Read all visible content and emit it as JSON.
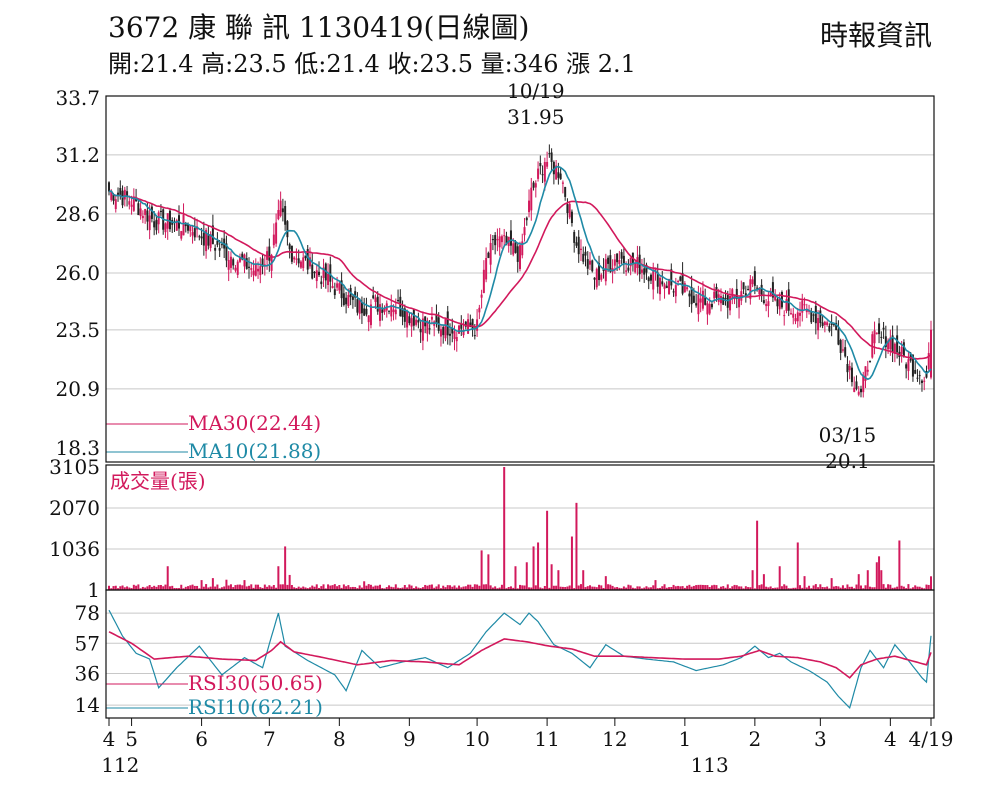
{
  "header": {
    "title": "3672 康 聯 訊 1130419(日線圖)",
    "source": "時報資訊",
    "summary": "開:21.4 高:23.5 低:21.4 收:23.5 量:346 漲 2.1"
  },
  "colors": {
    "up": "#d2195c",
    "down": "#222222",
    "ma30": "#d2195c",
    "ma10": "#1f8aa6",
    "rsi30": "#d2195c",
    "rsi10": "#1f8aa6",
    "volume": "#d2195c",
    "grid": "#c8c8c8"
  },
  "chart_data": [
    {
      "type": "candlestick",
      "name": "price",
      "ylim": [
        18.3,
        33.7
      ],
      "y_ticks": [
        "33.7",
        "31.2",
        "28.6",
        "26.0",
        "23.5",
        "20.9",
        "18.3"
      ],
      "x_ticks": [
        {
          "label": "4",
          "day": 0
        },
        {
          "label": "5",
          "day": 10
        },
        {
          "label": "6",
          "day": 41
        },
        {
          "label": "7",
          "day": 71
        },
        {
          "label": "8",
          "day": 102
        },
        {
          "label": "9",
          "day": 133
        },
        {
          "label": "10",
          "day": 163
        },
        {
          "label": "11",
          "day": 194
        },
        {
          "label": "12",
          "day": 224
        },
        {
          "label": "1",
          "day": 255
        },
        {
          "label": "2",
          "day": 286
        },
        {
          "label": "3",
          "day": 315
        },
        {
          "label": "4",
          "day": 346
        },
        {
          "label": "4/19",
          "day": 364
        }
      ],
      "year_labels": [
        {
          "label": "112",
          "day": 5
        },
        {
          "label": "113",
          "day": 266
        }
      ],
      "anchors": [
        [
          0,
          29.6
        ],
        [
          10,
          29.2
        ],
        [
          20,
          28.3
        ],
        [
          35,
          28.1
        ],
        [
          50,
          27.0
        ],
        [
          65,
          26.1
        ],
        [
          72,
          27.0
        ],
        [
          76,
          28.8
        ],
        [
          80,
          27.0
        ],
        [
          95,
          25.8
        ],
        [
          110,
          24.5
        ],
        [
          125,
          24.7
        ],
        [
          140,
          23.7
        ],
        [
          155,
          23.6
        ],
        [
          163,
          23.6
        ],
        [
          167,
          26.5
        ],
        [
          172,
          27.5
        ],
        [
          182,
          26.8
        ],
        [
          187,
          29.5
        ],
        [
          193,
          31.0
        ],
        [
          200,
          30.4
        ],
        [
          207,
          27.3
        ],
        [
          215,
          25.8
        ],
        [
          225,
          26.7
        ],
        [
          235,
          26.3
        ],
        [
          250,
          25.4
        ],
        [
          262,
          24.8
        ],
        [
          275,
          24.8
        ],
        [
          285,
          25.5
        ],
        [
          295,
          24.6
        ],
        [
          310,
          24.3
        ],
        [
          322,
          23.5
        ],
        [
          328,
          21.8
        ],
        [
          333,
          20.6
        ],
        [
          338,
          23.0
        ],
        [
          345,
          23.2
        ],
        [
          352,
          22.2
        ],
        [
          362,
          21.4
        ],
        [
          364,
          23.5
        ]
      ],
      "annotations": [
        {
          "date": "10/19",
          "value": 31.95
        },
        {
          "date": "03/15",
          "value": 20.1
        }
      ],
      "legend": [
        {
          "label": "MA30(22.44)",
          "series": "ma30"
        },
        {
          "label": "MA10(21.88)",
          "series": "ma10"
        }
      ]
    },
    {
      "type": "bar",
      "name": "volume",
      "label": "成交量(張)",
      "ylim": [
        0,
        3105
      ],
      "y_ticks": [
        "3105",
        "2070",
        "1036",
        "1"
      ],
      "spikes": [
        [
          26,
          600
        ],
        [
          41,
          250
        ],
        [
          46,
          300
        ],
        [
          52,
          260
        ],
        [
          60,
          250
        ],
        [
          75,
          600
        ],
        [
          78,
          1100
        ],
        [
          80,
          380
        ],
        [
          113,
          220
        ],
        [
          165,
          1000
        ],
        [
          168,
          900
        ],
        [
          175,
          3105
        ],
        [
          180,
          600
        ],
        [
          185,
          700
        ],
        [
          188,
          1100
        ],
        [
          190,
          1200
        ],
        [
          194,
          2000
        ],
        [
          196,
          650
        ],
        [
          199,
          500
        ],
        [
          205,
          1350
        ],
        [
          207,
          2200
        ],
        [
          210,
          500
        ],
        [
          220,
          350
        ],
        [
          242,
          250
        ],
        [
          285,
          500
        ],
        [
          287,
          1750
        ],
        [
          290,
          400
        ],
        [
          297,
          600
        ],
        [
          305,
          1200
        ],
        [
          308,
          350
        ],
        [
          320,
          300
        ],
        [
          332,
          400
        ],
        [
          336,
          500
        ],
        [
          340,
          700
        ],
        [
          341,
          850
        ],
        [
          342,
          500
        ],
        [
          350,
          1250
        ],
        [
          364,
          346
        ]
      ]
    },
    {
      "type": "line",
      "name": "rsi",
      "ylim": [
        5,
        85
      ],
      "y_ticks": [
        "78",
        "57",
        "36",
        "14"
      ],
      "rsi10_points": [
        [
          0,
          80
        ],
        [
          6,
          62
        ],
        [
          12,
          50
        ],
        [
          18,
          46
        ],
        [
          22,
          26
        ],
        [
          30,
          40
        ],
        [
          40,
          55
        ],
        [
          50,
          35
        ],
        [
          60,
          47
        ],
        [
          68,
          40
        ],
        [
          72,
          62
        ],
        [
          75,
          78
        ],
        [
          78,
          55
        ],
        [
          88,
          45
        ],
        [
          100,
          35
        ],
        [
          105,
          24
        ],
        [
          112,
          52
        ],
        [
          120,
          40
        ],
        [
          130,
          44
        ],
        [
          140,
          47
        ],
        [
          150,
          40
        ],
        [
          160,
          50
        ],
        [
          167,
          65
        ],
        [
          175,
          78
        ],
        [
          182,
          70
        ],
        [
          186,
          78
        ],
        [
          190,
          72
        ],
        [
          197,
          56
        ],
        [
          205,
          50
        ],
        [
          213,
          40
        ],
        [
          220,
          56
        ],
        [
          228,
          48
        ],
        [
          238,
          46
        ],
        [
          250,
          44
        ],
        [
          260,
          38
        ],
        [
          272,
          42
        ],
        [
          280,
          47
        ],
        [
          286,
          55
        ],
        [
          292,
          47
        ],
        [
          297,
          50
        ],
        [
          302,
          44
        ],
        [
          310,
          38
        ],
        [
          318,
          30
        ],
        [
          323,
          20
        ],
        [
          328,
          12
        ],
        [
          333,
          40
        ],
        [
          337,
          52
        ],
        [
          343,
          40
        ],
        [
          348,
          56
        ],
        [
          354,
          45
        ],
        [
          360,
          33
        ],
        [
          362,
          30
        ],
        [
          364,
          62.21
        ]
      ],
      "rsi30_points": [
        [
          0,
          65
        ],
        [
          10,
          57
        ],
        [
          20,
          46
        ],
        [
          35,
          48
        ],
        [
          50,
          46
        ],
        [
          65,
          45
        ],
        [
          72,
          52
        ],
        [
          76,
          58
        ],
        [
          82,
          51
        ],
        [
          95,
          47
        ],
        [
          110,
          42
        ],
        [
          125,
          45
        ],
        [
          140,
          44
        ],
        [
          155,
          42
        ],
        [
          165,
          52
        ],
        [
          175,
          60
        ],
        [
          185,
          58
        ],
        [
          195,
          55
        ],
        [
          205,
          53
        ],
        [
          215,
          48
        ],
        [
          228,
          48
        ],
        [
          240,
          47
        ],
        [
          255,
          46
        ],
        [
          270,
          46
        ],
        [
          280,
          48
        ],
        [
          288,
          52
        ],
        [
          295,
          48
        ],
        [
          305,
          47
        ],
        [
          315,
          44
        ],
        [
          322,
          40
        ],
        [
          328,
          33
        ],
        [
          333,
          42
        ],
        [
          340,
          46
        ],
        [
          348,
          48
        ],
        [
          355,
          45
        ],
        [
          362,
          42
        ],
        [
          364,
          50.65
        ]
      ],
      "legend": [
        {
          "label": "RSI30(50.65)",
          "series": "rsi30"
        },
        {
          "label": "RSI10(62.21)",
          "series": "rsi10"
        }
      ]
    }
  ]
}
